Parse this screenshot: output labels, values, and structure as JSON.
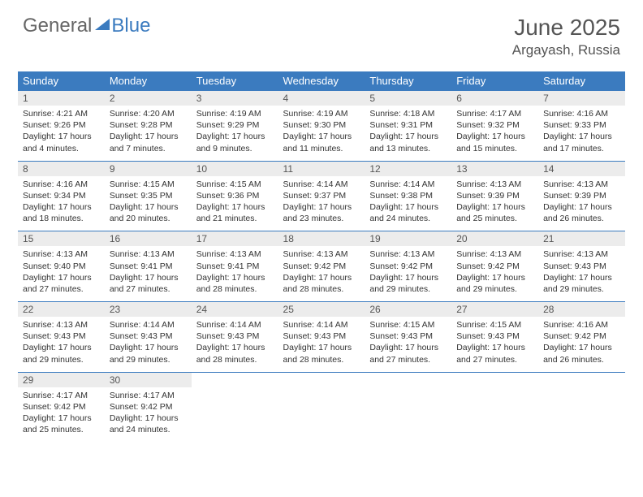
{
  "brand": {
    "part1": "General",
    "part2": "Blue"
  },
  "title": "June 2025",
  "location": "Argayash, Russia",
  "day_headers": [
    "Sunday",
    "Monday",
    "Tuesday",
    "Wednesday",
    "Thursday",
    "Friday",
    "Saturday"
  ],
  "colors": {
    "header_bg": "#3b7bbf",
    "header_text": "#ffffff",
    "daynum_bg": "#ececec",
    "border": "#3b7bbf",
    "body_text": "#333333",
    "title_text": "#555555"
  },
  "weeks": [
    [
      {
        "n": "1",
        "sr": "Sunrise: 4:21 AM",
        "ss": "Sunset: 9:26 PM",
        "d1": "Daylight: 17 hours",
        "d2": "and 4 minutes."
      },
      {
        "n": "2",
        "sr": "Sunrise: 4:20 AM",
        "ss": "Sunset: 9:28 PM",
        "d1": "Daylight: 17 hours",
        "d2": "and 7 minutes."
      },
      {
        "n": "3",
        "sr": "Sunrise: 4:19 AM",
        "ss": "Sunset: 9:29 PM",
        "d1": "Daylight: 17 hours",
        "d2": "and 9 minutes."
      },
      {
        "n": "4",
        "sr": "Sunrise: 4:19 AM",
        "ss": "Sunset: 9:30 PM",
        "d1": "Daylight: 17 hours",
        "d2": "and 11 minutes."
      },
      {
        "n": "5",
        "sr": "Sunrise: 4:18 AM",
        "ss": "Sunset: 9:31 PM",
        "d1": "Daylight: 17 hours",
        "d2": "and 13 minutes."
      },
      {
        "n": "6",
        "sr": "Sunrise: 4:17 AM",
        "ss": "Sunset: 9:32 PM",
        "d1": "Daylight: 17 hours",
        "d2": "and 15 minutes."
      },
      {
        "n": "7",
        "sr": "Sunrise: 4:16 AM",
        "ss": "Sunset: 9:33 PM",
        "d1": "Daylight: 17 hours",
        "d2": "and 17 minutes."
      }
    ],
    [
      {
        "n": "8",
        "sr": "Sunrise: 4:16 AM",
        "ss": "Sunset: 9:34 PM",
        "d1": "Daylight: 17 hours",
        "d2": "and 18 minutes."
      },
      {
        "n": "9",
        "sr": "Sunrise: 4:15 AM",
        "ss": "Sunset: 9:35 PM",
        "d1": "Daylight: 17 hours",
        "d2": "and 20 minutes."
      },
      {
        "n": "10",
        "sr": "Sunrise: 4:15 AM",
        "ss": "Sunset: 9:36 PM",
        "d1": "Daylight: 17 hours",
        "d2": "and 21 minutes."
      },
      {
        "n": "11",
        "sr": "Sunrise: 4:14 AM",
        "ss": "Sunset: 9:37 PM",
        "d1": "Daylight: 17 hours",
        "d2": "and 23 minutes."
      },
      {
        "n": "12",
        "sr": "Sunrise: 4:14 AM",
        "ss": "Sunset: 9:38 PM",
        "d1": "Daylight: 17 hours",
        "d2": "and 24 minutes."
      },
      {
        "n": "13",
        "sr": "Sunrise: 4:13 AM",
        "ss": "Sunset: 9:39 PM",
        "d1": "Daylight: 17 hours",
        "d2": "and 25 minutes."
      },
      {
        "n": "14",
        "sr": "Sunrise: 4:13 AM",
        "ss": "Sunset: 9:39 PM",
        "d1": "Daylight: 17 hours",
        "d2": "and 26 minutes."
      }
    ],
    [
      {
        "n": "15",
        "sr": "Sunrise: 4:13 AM",
        "ss": "Sunset: 9:40 PM",
        "d1": "Daylight: 17 hours",
        "d2": "and 27 minutes."
      },
      {
        "n": "16",
        "sr": "Sunrise: 4:13 AM",
        "ss": "Sunset: 9:41 PM",
        "d1": "Daylight: 17 hours",
        "d2": "and 27 minutes."
      },
      {
        "n": "17",
        "sr": "Sunrise: 4:13 AM",
        "ss": "Sunset: 9:41 PM",
        "d1": "Daylight: 17 hours",
        "d2": "and 28 minutes."
      },
      {
        "n": "18",
        "sr": "Sunrise: 4:13 AM",
        "ss": "Sunset: 9:42 PM",
        "d1": "Daylight: 17 hours",
        "d2": "and 28 minutes."
      },
      {
        "n": "19",
        "sr": "Sunrise: 4:13 AM",
        "ss": "Sunset: 9:42 PM",
        "d1": "Daylight: 17 hours",
        "d2": "and 29 minutes."
      },
      {
        "n": "20",
        "sr": "Sunrise: 4:13 AM",
        "ss": "Sunset: 9:42 PM",
        "d1": "Daylight: 17 hours",
        "d2": "and 29 minutes."
      },
      {
        "n": "21",
        "sr": "Sunrise: 4:13 AM",
        "ss": "Sunset: 9:43 PM",
        "d1": "Daylight: 17 hours",
        "d2": "and 29 minutes."
      }
    ],
    [
      {
        "n": "22",
        "sr": "Sunrise: 4:13 AM",
        "ss": "Sunset: 9:43 PM",
        "d1": "Daylight: 17 hours",
        "d2": "and 29 minutes."
      },
      {
        "n": "23",
        "sr": "Sunrise: 4:14 AM",
        "ss": "Sunset: 9:43 PM",
        "d1": "Daylight: 17 hours",
        "d2": "and 29 minutes."
      },
      {
        "n": "24",
        "sr": "Sunrise: 4:14 AM",
        "ss": "Sunset: 9:43 PM",
        "d1": "Daylight: 17 hours",
        "d2": "and 28 minutes."
      },
      {
        "n": "25",
        "sr": "Sunrise: 4:14 AM",
        "ss": "Sunset: 9:43 PM",
        "d1": "Daylight: 17 hours",
        "d2": "and 28 minutes."
      },
      {
        "n": "26",
        "sr": "Sunrise: 4:15 AM",
        "ss": "Sunset: 9:43 PM",
        "d1": "Daylight: 17 hours",
        "d2": "and 27 minutes."
      },
      {
        "n": "27",
        "sr": "Sunrise: 4:15 AM",
        "ss": "Sunset: 9:43 PM",
        "d1": "Daylight: 17 hours",
        "d2": "and 27 minutes."
      },
      {
        "n": "28",
        "sr": "Sunrise: 4:16 AM",
        "ss": "Sunset: 9:42 PM",
        "d1": "Daylight: 17 hours",
        "d2": "and 26 minutes."
      }
    ],
    [
      {
        "n": "29",
        "sr": "Sunrise: 4:17 AM",
        "ss": "Sunset: 9:42 PM",
        "d1": "Daylight: 17 hours",
        "d2": "and 25 minutes."
      },
      {
        "n": "30",
        "sr": "Sunrise: 4:17 AM",
        "ss": "Sunset: 9:42 PM",
        "d1": "Daylight: 17 hours",
        "d2": "and 24 minutes."
      },
      null,
      null,
      null,
      null,
      null
    ]
  ]
}
